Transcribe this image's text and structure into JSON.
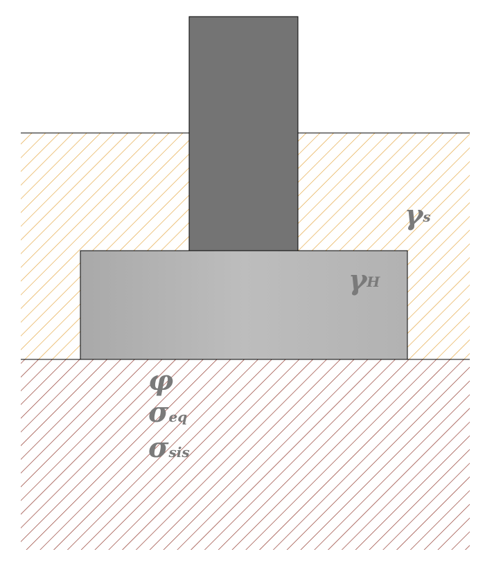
{
  "colors": {
    "soil_upper_hatch": "#e4a43c",
    "soil_lower_hatch": "#8b2e22",
    "column_fill": "#747474",
    "footing_fill": "#b9b9b9",
    "label_color": "#7a7a7a",
    "outline": "#000000"
  },
  "labels": {
    "gamma_s": {
      "symbol": "γ",
      "subscript": "s"
    },
    "gamma_h": {
      "symbol": "γ",
      "subscript": "H"
    },
    "phi": {
      "symbol": "φ"
    },
    "sigma_eq": {
      "symbol": "σ",
      "subscript": "eq"
    },
    "sigma_sis": {
      "symbol": "σ",
      "subscript": "sis"
    }
  }
}
